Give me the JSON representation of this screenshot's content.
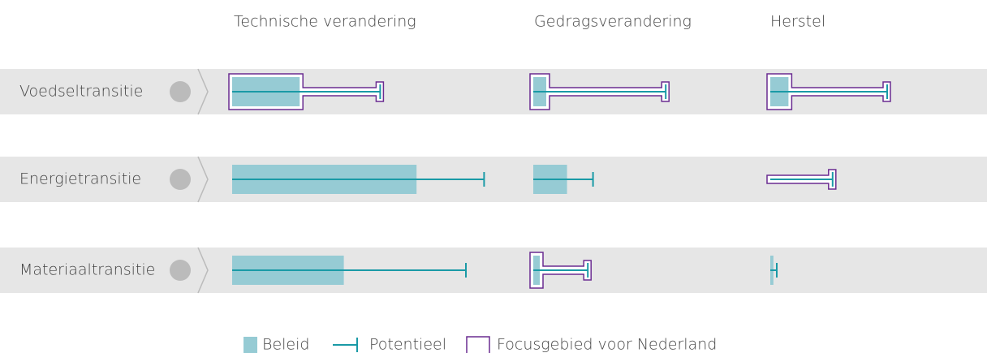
{
  "chart_data": {
    "type": "range-bar-matrix",
    "columns": [
      "Technische verandering",
      "Gedragsverandering",
      "Herstel"
    ],
    "categories": [
      "Voedseltransitie",
      "Energietransitie",
      "Materiaaltransitie"
    ],
    "xlim": [
      0,
      100
    ],
    "series": [
      {
        "name": "Beleid",
        "color": "#96cbd4",
        "values": [
          [
            26,
            5,
            7
          ],
          [
            71,
            13,
            0
          ],
          [
            43,
            2.5,
            1.2
          ]
        ]
      },
      {
        "name": "Potentieel",
        "color": "#1a9aa6",
        "values": [
          [
            57,
            51,
            45
          ],
          [
            97,
            23,
            24
          ],
          [
            90,
            21,
            2.5
          ]
        ]
      },
      {
        "name": "Focusgebied voor Nederland",
        "color": "#6a2c91",
        "values": [
          [
            true,
            true,
            true
          ],
          [
            false,
            false,
            true
          ],
          [
            false,
            true,
            false
          ]
        ]
      }
    ]
  }
}
